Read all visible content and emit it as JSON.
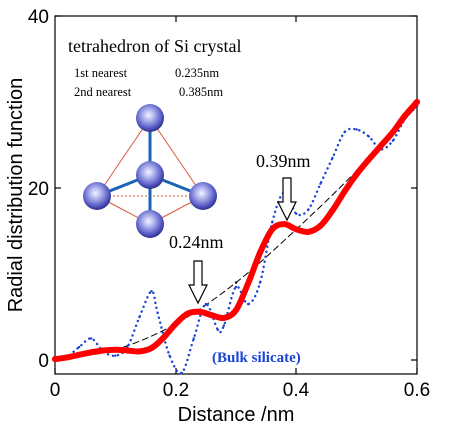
{
  "chart_data": {
    "type": "line",
    "title": "",
    "xlabel": "Distance /nm",
    "ylabel": "Radial distribution function",
    "xlim": [
      0,
      0.6
    ],
    "ylim": [
      -2,
      40
    ],
    "x_ticks": [
      "0",
      "0.2",
      "0.4",
      "0.6"
    ],
    "y_ticks": [
      "0",
      "20",
      "40"
    ],
    "grid": false,
    "series": [
      {
        "name": "",
        "style": "solid-thick",
        "color": "#ff0000",
        "x": [
          0,
          0.02,
          0.04,
          0.06,
          0.08,
          0.1,
          0.12,
          0.14,
          0.16,
          0.18,
          0.2,
          0.22,
          0.24,
          0.26,
          0.28,
          0.3,
          0.32,
          0.34,
          0.36,
          0.38,
          0.4,
          0.42,
          0.44,
          0.46,
          0.48,
          0.5,
          0.52,
          0.54,
          0.56,
          0.58,
          0.6
        ],
        "y": [
          0.1,
          0.3,
          0.6,
          0.9,
          1.1,
          1.2,
          1.1,
          1.0,
          1.4,
          2.6,
          4.2,
          5.4,
          5.6,
          5.2,
          4.9,
          5.8,
          8.9,
          12.5,
          15.2,
          15.8,
          15.2,
          14.9,
          15.6,
          17.4,
          19.6,
          21.6,
          23.3,
          24.9,
          26.5,
          28.4,
          30.0
        ]
      },
      {
        "name": "Bulk silicate",
        "style": "dotted",
        "color": "#1a44d6",
        "x": [
          0,
          0.02,
          0.04,
          0.06,
          0.08,
          0.1,
          0.12,
          0.14,
          0.16,
          0.17,
          0.19,
          0.21,
          0.23,
          0.25,
          0.27,
          0.28,
          0.3,
          0.32,
          0.34,
          0.36,
          0.38,
          0.4,
          0.42,
          0.44,
          0.46,
          0.48,
          0.5,
          0.52,
          0.54,
          0.56,
          0.58,
          0.6
        ],
        "y": [
          0.2,
          0.4,
          1.5,
          2.5,
          1.0,
          0.5,
          1.5,
          5.0,
          8.0,
          5.5,
          0.5,
          -1.5,
          2.5,
          6.5,
          3.5,
          4.0,
          8.5,
          6.5,
          9.0,
          16.0,
          19.5,
          17.0,
          17.5,
          20.5,
          23.5,
          26.5,
          26.8,
          26.0,
          24.5,
          25.5,
          28.0,
          29.5
        ]
      },
      {
        "name": "",
        "style": "dashed-thin",
        "color": "#000000",
        "x": [
          0,
          0.1,
          0.2,
          0.3,
          0.4,
          0.5,
          0.6
        ],
        "y": [
          0,
          1.2,
          4.2,
          9.0,
          15.2,
          22.0,
          29.5
        ]
      }
    ],
    "annotations": [
      {
        "text": "0.24nm",
        "x": 0.24,
        "y": 5.6
      },
      {
        "text": "0.39nm",
        "x": 0.38,
        "y": 16.0
      },
      {
        "text": "(Bulk silicate)",
        "color": "#1a44d6"
      }
    ]
  },
  "inset": {
    "title": "tetrahedron of Si crystal",
    "rows": [
      {
        "label": "1st  nearest",
        "value": "0.235nm"
      },
      {
        "label": "2nd nearest",
        "value": "0.385nm"
      }
    ]
  }
}
